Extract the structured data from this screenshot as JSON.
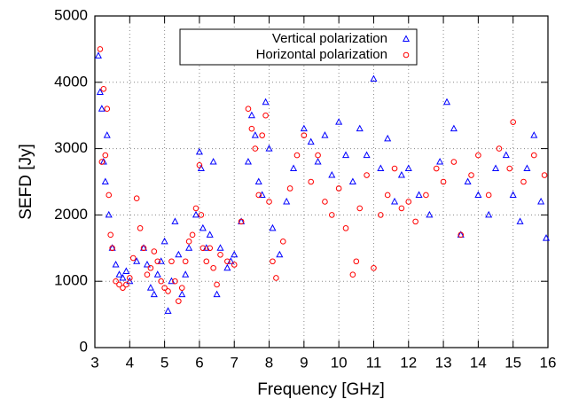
{
  "chart_data": {
    "type": "scatter",
    "xlabel": "Frequency [GHz]",
    "ylabel": "SEFD [Jy]",
    "xlim": [
      3,
      16
    ],
    "xticks": [
      3,
      4,
      5,
      6,
      7,
      8,
      9,
      10,
      11,
      12,
      13,
      14,
      15,
      16
    ],
    "ylim": [
      0,
      5000
    ],
    "yticks": [
      0,
      1000,
      2000,
      3000,
      4000,
      5000
    ],
    "grid": true,
    "legend": "top-center",
    "series": [
      {
        "name": "Vertical polarization",
        "color": "#0000ff",
        "marker": "triangle",
        "x": [
          3.1,
          3.15,
          3.2,
          3.25,
          3.3,
          3.35,
          3.4,
          3.5,
          3.6,
          3.7,
          3.8,
          3.9,
          4.0,
          4.2,
          4.4,
          4.5,
          4.6,
          4.7,
          4.8,
          4.9,
          5.0,
          5.1,
          5.2,
          5.3,
          5.4,
          5.5,
          5.6,
          5.7,
          5.9,
          6.0,
          6.05,
          6.1,
          6.2,
          6.3,
          6.4,
          6.5,
          6.6,
          6.8,
          6.9,
          7.0,
          7.2,
          7.4,
          7.5,
          7.6,
          7.7,
          7.8,
          7.9,
          8.0,
          8.1,
          8.3,
          8.5,
          8.7,
          9.0,
          9.2,
          9.4,
          9.6,
          9.8,
          10.0,
          10.2,
          10.4,
          10.6,
          10.8,
          11.0,
          11.2,
          11.4,
          11.6,
          11.8,
          12.0,
          12.3,
          12.6,
          12.9,
          13.1,
          13.3,
          13.5,
          13.7,
          14.0,
          14.3,
          14.5,
          14.8,
          15.0,
          15.2,
          15.4,
          15.6,
          15.8,
          15.95
        ],
        "values": [
          4400,
          3850,
          3600,
          2800,
          2500,
          3200,
          2000,
          1500,
          1250,
          1100,
          1050,
          1150,
          1000,
          1300,
          1500,
          1250,
          900,
          800,
          1100,
          1300,
          1600,
          550,
          1000,
          1900,
          1400,
          800,
          1100,
          1500,
          2000,
          2950,
          2700,
          1800,
          1500,
          1700,
          2800,
          800,
          1500,
          1200,
          1300,
          1400,
          1900,
          2800,
          3500,
          3200,
          2500,
          2300,
          3700,
          3000,
          1800,
          1400,
          2200,
          2700,
          3300,
          3100,
          2800,
          3200,
          2600,
          3400,
          2900,
          2500,
          3300,
          2900,
          4050,
          2700,
          3150,
          2200,
          2600,
          2700,
          2300,
          2000,
          2800,
          3700,
          3300,
          1700,
          2500,
          2300,
          2000,
          2700,
          2900,
          2300,
          1900,
          2700,
          3200,
          2200,
          1650
        ]
      },
      {
        "name": "Horizontal polarization",
        "color": "#ff0000",
        "marker": "circle",
        "x": [
          3.15,
          3.2,
          3.25,
          3.3,
          3.35,
          3.4,
          3.45,
          3.5,
          3.6,
          3.7,
          3.8,
          3.9,
          4.0,
          4.1,
          4.2,
          4.3,
          4.4,
          4.5,
          4.6,
          4.7,
          4.8,
          4.9,
          5.0,
          5.1,
          5.2,
          5.3,
          5.4,
          5.5,
          5.6,
          5.7,
          5.8,
          5.9,
          6.0,
          6.05,
          6.1,
          6.2,
          6.3,
          6.4,
          6.5,
          6.6,
          6.8,
          7.0,
          7.2,
          7.4,
          7.5,
          7.6,
          7.7,
          7.8,
          7.9,
          8.0,
          8.1,
          8.2,
          8.4,
          8.6,
          8.8,
          9.0,
          9.2,
          9.4,
          9.6,
          9.8,
          10.0,
          10.2,
          10.4,
          10.5,
          10.6,
          10.8,
          11.0,
          11.2,
          11.4,
          11.6,
          11.8,
          12.0,
          12.2,
          12.5,
          12.8,
          13.0,
          13.3,
          13.5,
          13.8,
          14.0,
          14.3,
          14.6,
          14.9,
          15.0,
          15.3,
          15.6,
          15.9
        ],
        "values": [
          4500,
          2800,
          3900,
          2900,
          3600,
          2300,
          1700,
          1500,
          1000,
          950,
          900,
          950,
          1050,
          1350,
          2250,
          1800,
          1500,
          1100,
          1200,
          1450,
          1300,
          1000,
          900,
          850,
          1300,
          1000,
          700,
          900,
          1300,
          1600,
          1700,
          2100,
          2750,
          2000,
          1500,
          1300,
          1500,
          1200,
          950,
          1400,
          1300,
          1250,
          1900,
          3600,
          3300,
          3000,
          2300,
          3200,
          3500,
          2200,
          1300,
          1050,
          1600,
          2400,
          2900,
          3200,
          2500,
          2900,
          2200,
          2000,
          2400,
          1800,
          1100,
          1300,
          2100,
          2600,
          1200,
          2000,
          2300,
          2700,
          2100,
          2200,
          1900,
          2300,
          2700,
          2500,
          2800,
          1700,
          2600,
          2900,
          2300,
          3000,
          2700,
          3400,
          2500,
          2900,
          2600
        ]
      }
    ]
  }
}
